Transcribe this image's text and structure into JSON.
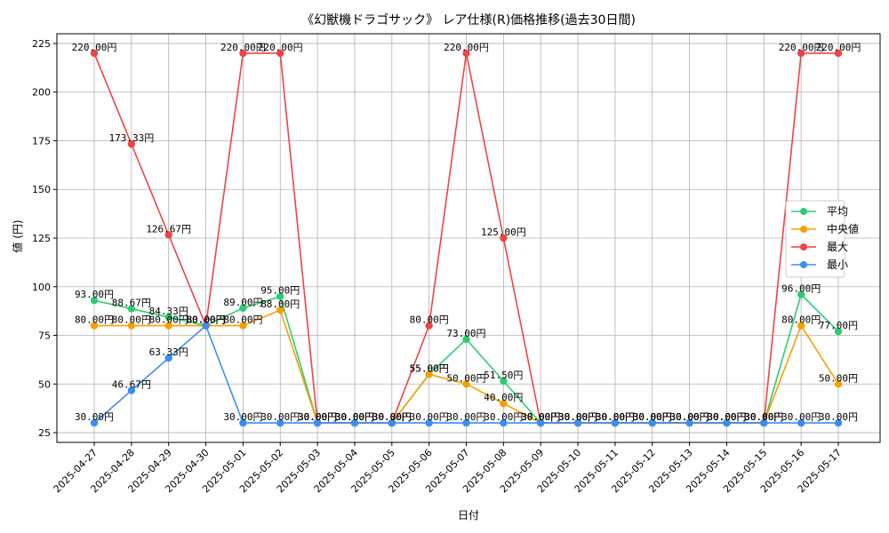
{
  "chart_data": {
    "type": "line",
    "title": "《幻獣機ドラゴサック》 レア仕様(R)価格推移(過去30日間)",
    "xlabel": "日付",
    "ylabel": "値 (円)",
    "value_suffix": "円",
    "categories": [
      "2025-04-27",
      "2025-04-28",
      "2025-04-29",
      "2025-04-30",
      "2025-05-01",
      "2025-05-02",
      "2025-05-03",
      "2025-05-04",
      "2025-05-05",
      "2025-05-06",
      "2025-05-07",
      "2025-05-08",
      "2025-05-09",
      "2025-05-10",
      "2025-05-11",
      "2025-05-12",
      "2025-05-13",
      "2025-05-14",
      "2025-05-15",
      "2025-05-16",
      "2025-05-17"
    ],
    "ylim": [
      20,
      230
    ],
    "yticks": [
      25,
      50,
      75,
      100,
      125,
      150,
      175,
      200,
      225
    ],
    "grid": true,
    "legend_position": "right",
    "series": [
      {
        "name": "平均",
        "color": "#2ecc71",
        "values": [
          93.0,
          88.67,
          84.33,
          80.0,
          89.0,
          95.0,
          30.0,
          30.0,
          30.0,
          55.0,
          73.0,
          51.5,
          30.0,
          30.0,
          30.0,
          30.0,
          30.0,
          30.0,
          30.0,
          96.0,
          77.0
        ]
      },
      {
        "name": "中央値",
        "color": "#f5a000",
        "values": [
          80.0,
          80.0,
          80.0,
          80.0,
          80.0,
          88.0,
          30.0,
          30.0,
          30.0,
          55.0,
          50.0,
          40.0,
          30.0,
          30.0,
          30.0,
          30.0,
          30.0,
          30.0,
          30.0,
          80.0,
          50.0
        ]
      },
      {
        "name": "最大",
        "color": "#ef4444",
        "values": [
          220.0,
          173.33,
          126.67,
          80.0,
          220.0,
          220.0,
          30.0,
          30.0,
          30.0,
          80.0,
          220.0,
          125.0,
          30.0,
          30.0,
          30.0,
          30.0,
          30.0,
          30.0,
          30.0,
          220.0,
          220.0
        ]
      },
      {
        "name": "最小",
        "color": "#3b8ef0",
        "values": [
          30.0,
          46.67,
          63.33,
          80.0,
          30.0,
          30.0,
          30.0,
          30.0,
          30.0,
          30.0,
          30.0,
          30.0,
          30.0,
          30.0,
          30.0,
          30.0,
          30.0,
          30.0,
          30.0,
          30.0,
          30.0
        ]
      }
    ]
  }
}
